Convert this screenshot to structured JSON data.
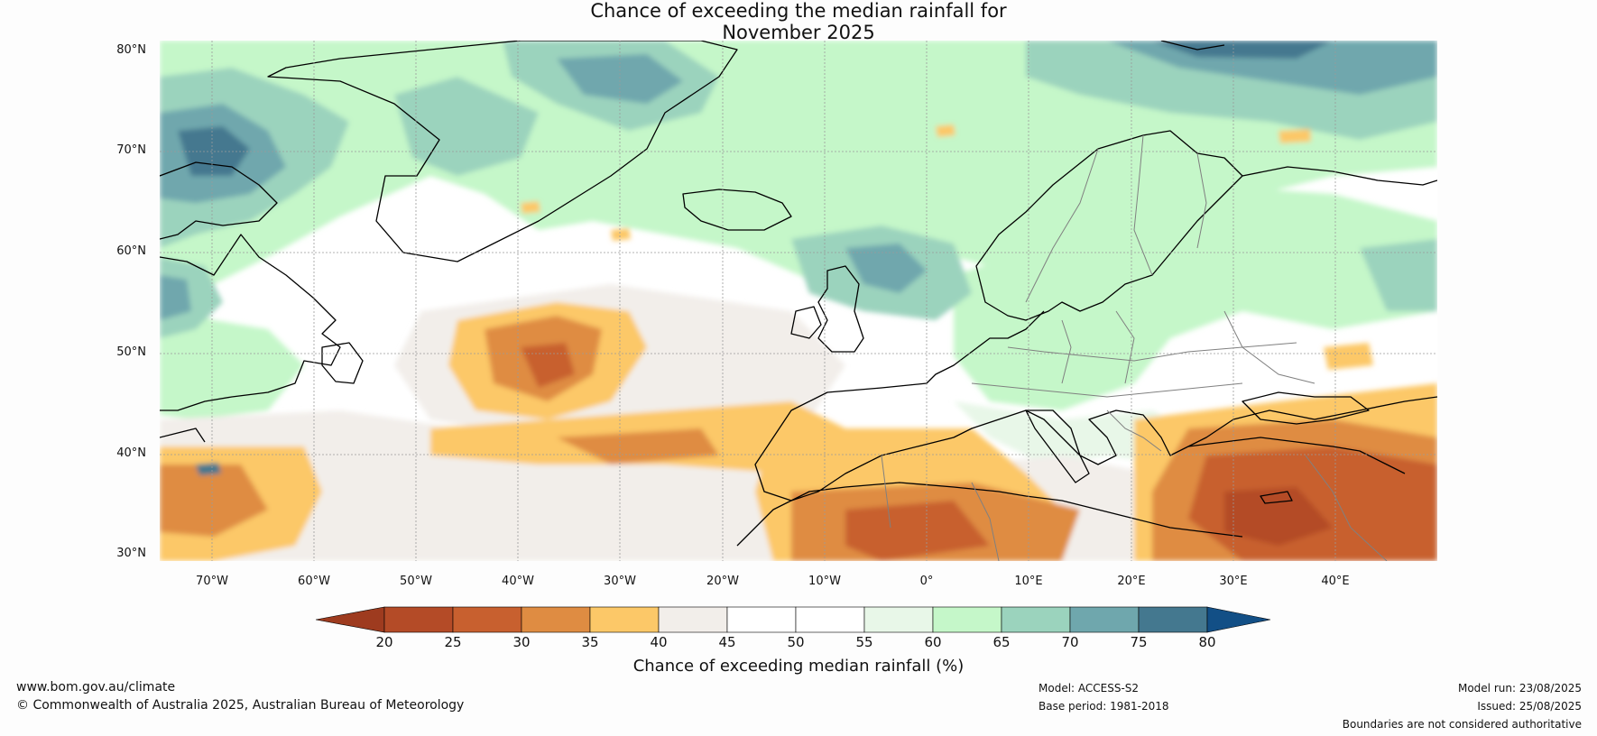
{
  "title": {
    "line1": "Chance of exceeding the median rainfall for",
    "line2": "November 2025"
  },
  "map": {
    "latitude_labels": [
      "80°N",
      "70°N",
      "60°N",
      "50°N",
      "40°N",
      "30°N"
    ],
    "longitude_labels": [
      "70°W",
      "60°W",
      "50°W",
      "40°W",
      "30°W",
      "20°W",
      "10°W",
      "0°",
      "10°E",
      "20°E",
      "30°E",
      "40°E"
    ],
    "land_border_color": "#000000",
    "country_border_color": "#808080",
    "grid_color": "#9a9a9a"
  },
  "colorbar": {
    "ticks": [
      "20",
      "25",
      "30",
      "35",
      "40",
      "45",
      "50",
      "55",
      "60",
      "65",
      "70",
      "75",
      "80"
    ],
    "colors": [
      "#9e3b1f",
      "#b44b27",
      "#c8602f",
      "#df8c42",
      "#fcc868",
      "#f2eeea",
      "#ffffff",
      "#ffffff",
      "#e8f7e8",
      "#c5f7c9",
      "#9bd3bd",
      "#6fa7ad",
      "#44788f",
      "#124f86"
    ],
    "label": "Chance of exceeding median rainfall (%)"
  },
  "footer": {
    "website": "www.bom.gov.au/climate",
    "copyright": "© Commonwealth of Australia 2025, Australian Bureau of Meteorology",
    "model": "Model: ACCESS-S2",
    "base_period": "Base period: 1981-2018",
    "model_run": "Model run: 23/08/2025",
    "issued": "Issued: 25/08/2025",
    "disclaimer": "Boundaries are not considered authoritative"
  }
}
